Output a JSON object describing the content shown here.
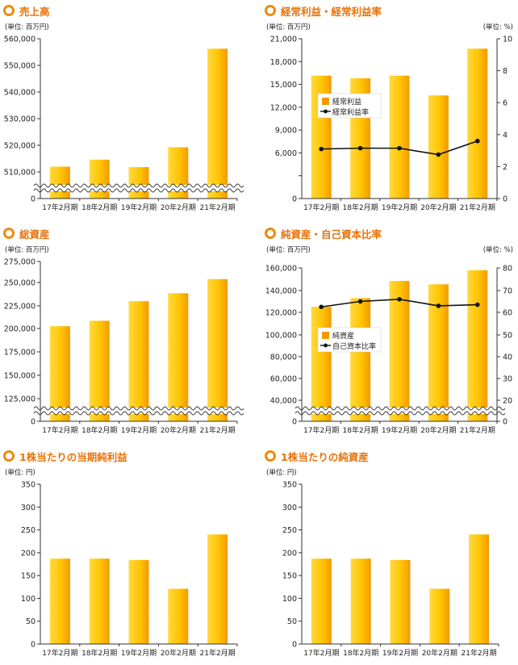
{
  "colors": {
    "title": "#e8730c",
    "bar_top": "#ffd940",
    "bar_bottom": "#f39a00",
    "line": "#111111",
    "axis": "#333333"
  },
  "charts": [
    {
      "id": "sales",
      "title": "売上高",
      "left_unit": "(単位: 百万円)",
      "chart_data": {
        "type": "bar",
        "title": "売上高",
        "categories": [
          "17年2月期",
          "18年2月期",
          "19年2月期",
          "20年2月期",
          "21年2月期"
        ],
        "series": [
          {
            "values": [
              511958,
              514600,
              511800,
              519256,
              556251
            ]
          }
        ],
        "yticks": [
          0,
          510000,
          520000,
          530000,
          540000,
          550000,
          560000
        ],
        "ytick_labels": [
          "0",
          "510,000",
          "520,000",
          "530,000",
          "540,000",
          "550,000",
          "560,000"
        ],
        "axis_break": true,
        "grid": false
      }
    },
    {
      "id": "ordinary",
      "title": "経常利益・経常利益率",
      "left_unit": "(単位: 百万円)",
      "right_unit": "(単位: %)",
      "chart_data": {
        "type": "bar",
        "title": "経常利益・経常利益率",
        "categories": [
          "17年2月期",
          "18年2月期",
          "19年2月期",
          "20年2月期",
          "21年2月期"
        ],
        "series": [
          {
            "name": "経常利益",
            "type": "bar",
            "values": [
              16150,
              15800,
              16150,
              13550,
              19700
            ]
          },
          {
            "name": "経常利益率",
            "type": "line",
            "axis": "right",
            "values": [
              3.1,
              3.15,
              3.15,
              2.75,
              3.6
            ]
          }
        ],
        "yticks": [
          0,
          3000,
          6000,
          9000,
          12000,
          15000,
          18000,
          21000
        ],
        "ytick_labels": [
          "0",
          "",
          "6,000",
          "9,000",
          "12,000",
          "15,000",
          "18,000",
          "21,000"
        ],
        "ylim": [
          0,
          21000
        ],
        "y2ticks": [
          0,
          2,
          4,
          6,
          8,
          10
        ],
        "y2lim": [
          0,
          10
        ],
        "legend": "center-left",
        "grid": false
      }
    },
    {
      "id": "assets",
      "title": "総資産",
      "left_unit": "(単位: 百万円)",
      "chart_data": {
        "type": "bar",
        "title": "総資産",
        "categories": [
          "17年2月期",
          "18年2月期",
          "19年2月期",
          "20年2月期",
          "21年2月期"
        ],
        "series": [
          {
            "values": [
              202500,
              208500,
              230000,
              238500,
              254000
            ]
          }
        ],
        "yticks": [
          0,
          125000,
          150000,
          175000,
          200000,
          225000,
          250000,
          275000
        ],
        "ytick_labels": [
          "0",
          "125,000",
          "150,000",
          "175,000",
          "200,000",
          "225,000",
          "250,000",
          "275,000"
        ],
        "axis_break": true,
        "grid": false
      }
    },
    {
      "id": "netassets",
      "title": "純資産・自己資本比率",
      "left_unit": "(単位: 百万円)",
      "right_unit": "(単位: %)",
      "chart_data": {
        "type": "bar",
        "title": "純資産・自己資本比率",
        "categories": [
          "17年2月期",
          "18年2月期",
          "19年2月期",
          "20年2月期",
          "21年2月期"
        ],
        "series": [
          {
            "name": "純資産",
            "type": "bar",
            "values": [
              125000,
              133000,
              148500,
              145500,
              158000
            ]
          },
          {
            "name": "自己資本比率",
            "type": "line",
            "axis": "right",
            "values": [
              62.5,
              65.0,
              66.0,
              63.0,
              63.5
            ]
          }
        ],
        "yticks": [
          0,
          40000,
          60000,
          80000,
          100000,
          120000,
          140000,
          160000
        ],
        "ytick_labels": [
          "0",
          "40,000",
          "60,000",
          "80,000",
          "100,000",
          "120,000",
          "140,000",
          "160,000"
        ],
        "y2ticks": [
          0,
          20,
          30,
          40,
          50,
          60,
          70,
          80
        ],
        "axis_break": true,
        "legend": "center-left",
        "grid": false
      }
    },
    {
      "id": "eps",
      "title": "1株当たりの当期純利益",
      "left_unit": "(単位: 円)",
      "chart_data": {
        "type": "bar",
        "title": "1株当たりの当期純利益",
        "categories": [
          "17年2月期",
          "18年2月期",
          "19年2月期",
          "20年2月期",
          "21年2月期"
        ],
        "series": [
          {
            "values": [
              187,
              187,
              184,
              121,
              240
            ]
          }
        ],
        "yticks": [
          0,
          50,
          100,
          150,
          200,
          250,
          300,
          350
        ],
        "ytick_labels": [
          "0",
          "50",
          "100",
          "150",
          "200",
          "250",
          "300",
          "350"
        ],
        "ylim": [
          0,
          350
        ],
        "grid": false
      }
    },
    {
      "id": "bps",
      "title": "1株当たりの純資産",
      "left_unit": "(単位: 円)",
      "chart_data": {
        "type": "bar",
        "title": "1株当たりの純資産",
        "categories": [
          "17年2月期",
          "18年2月期",
          "19年2月期",
          "20年2月期",
          "21年2月期"
        ],
        "series": [
          {
            "values": [
              187,
              187,
              184,
              121,
              240
            ]
          }
        ],
        "yticks": [
          0,
          50,
          100,
          150,
          200,
          250,
          300,
          350
        ],
        "ytick_labels": [
          "0",
          "50",
          "100",
          "150",
          "200",
          "250",
          "300",
          "350"
        ],
        "ylim": [
          0,
          350
        ],
        "grid": false
      }
    }
  ]
}
